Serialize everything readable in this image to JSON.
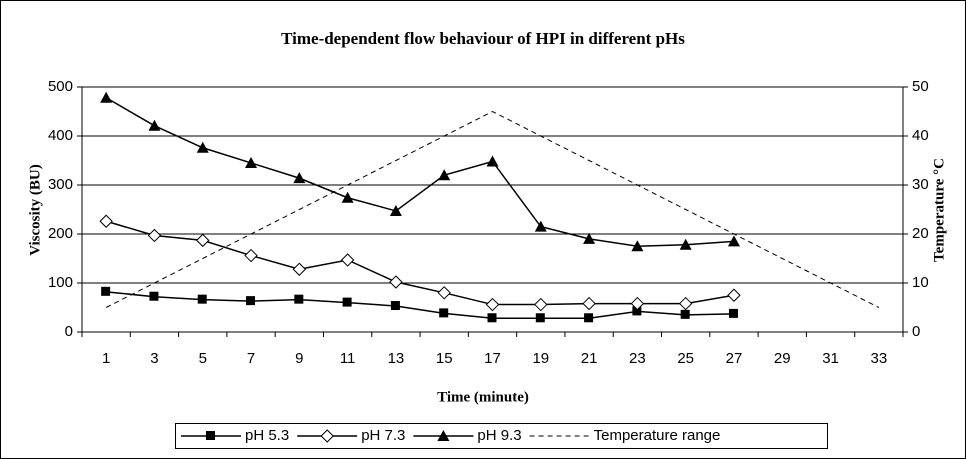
{
  "chart_data": {
    "type": "line",
    "title": "Time-dependent flow behaviour of HPI in different pHs",
    "x_label": "Time (minute)",
    "y_label": "Viscosity (BU)",
    "y2_label": "Temperature °C",
    "categories": [
      1,
      3,
      5,
      7,
      9,
      11,
      13,
      15,
      17,
      19,
      21,
      23,
      25,
      27,
      29,
      31,
      33
    ],
    "ylim": [
      0,
      500
    ],
    "yticks": [
      0,
      100,
      200,
      300,
      400,
      500
    ],
    "y2lim": [
      0,
      50
    ],
    "y2ticks": [
      0,
      10,
      20,
      30,
      40,
      50
    ],
    "grid": true,
    "legend": "bottom",
    "series": [
      {
        "name": "pH 5.3",
        "color": "#000000",
        "marker": "square",
        "values": [
          82,
          72,
          66,
          63,
          66,
          60,
          53,
          38,
          28,
          28,
          28,
          42,
          35,
          37,
          null,
          null,
          null
        ]
      },
      {
        "name": "pH 7.3",
        "color": "#000000",
        "marker": "diamond",
        "values": [
          226,
          197,
          187,
          156,
          128,
          147,
          102,
          80,
          56,
          56,
          58,
          58,
          58,
          75,
          null,
          null,
          null
        ]
      },
      {
        "name": "pH 9.3",
        "color": "#000000",
        "marker": "triangle",
        "values": [
          478,
          421,
          376,
          345,
          314,
          274,
          247,
          320,
          348,
          215,
          190,
          175,
          178,
          185,
          null,
          null,
          null
        ]
      },
      {
        "name": "Temperature range",
        "color": "#000000",
        "dashed": true,
        "axis": "y2",
        "values": [
          5,
          10,
          15,
          20,
          25,
          30,
          35,
          40,
          45,
          40,
          35,
          30,
          25,
          20,
          15,
          10,
          5
        ]
      }
    ]
  }
}
